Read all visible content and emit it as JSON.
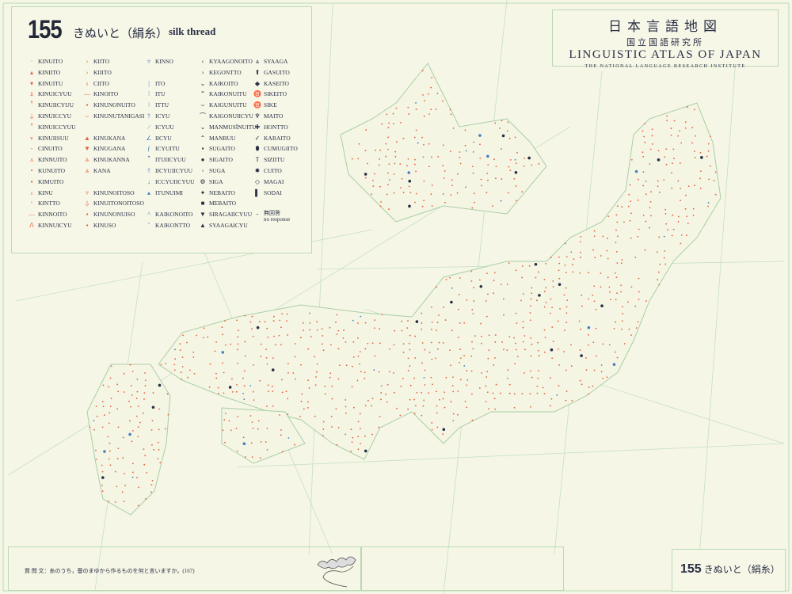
{
  "map": {
    "number": "155",
    "title_ja": "きぬいと（絹糸）",
    "title_en": "silk thread",
    "question": "質 問 文：糸のうち，蚕のまゆから作るものを何と言いますか。(167)",
    "colors": {
      "background": "#f6f6e6",
      "grid": "#b9d9b5",
      "kinuito": "#e8603c",
      "kana": "#d6303a",
      "ito": "#4a7fc0",
      "kaiko": "#2a2f45"
    }
  },
  "atlas": {
    "title_ja": "日本言語地図",
    "institute_ja": "国立国語研究所",
    "title_en": "LINGUISTIC ATLAS OF JAPAN",
    "institute_en": "THE NATIONAL LANGUAGE RESEARCH INSTITUTE"
  },
  "legend": {
    "columns": [
      {
        "color": "#e8603c",
        "items": [
          {
            "s": "·",
            "t": "KINUITO"
          },
          {
            "s": "▴",
            "t": "KINIITO"
          },
          {
            "s": "▾",
            "t": "KINUITU"
          },
          {
            "s": "⍋",
            "t": "KINUICYUU"
          },
          {
            "s": "ꜛ",
            "t": "KINUIICYUU"
          },
          {
            "s": "⍊",
            "t": "KINUICCYU"
          },
          {
            "s": "ꜛ",
            "t": "KINUICCYUU"
          },
          {
            "s": "ʏ",
            "t": "KINUIISUU"
          },
          {
            "s": "-",
            "t": "CINUITO"
          },
          {
            "s": "ʌ",
            "t": "KINNUITO"
          },
          {
            "s": "•",
            "t": "KUNUITO"
          },
          {
            "s": "▪",
            "t": "KIMUITO"
          },
          {
            "s": "ı",
            "t": "KINU"
          },
          {
            "s": "ᵛ",
            "t": "KINTTO"
          },
          {
            "s": "—",
            "t": "KINNOITO"
          },
          {
            "s": "ᐱ",
            "t": "KINNUICYU"
          }
        ]
      },
      {
        "color": "#e8603c",
        "items": [
          {
            "s": "›",
            "t": "KIITO"
          },
          {
            "s": "›",
            "t": "KIIITO"
          },
          {
            "s": "ı",
            "t": "CIITO"
          },
          {
            "s": "—",
            "t": "KINOITO"
          },
          {
            "s": "▪",
            "t": "KINUNONUITO"
          },
          {
            "s": "⌣",
            "t": "KINUNUTANIGASI"
          },
          {
            "s": "",
            "t": ""
          },
          {
            "s": "▲",
            "t": "KINUKANA"
          },
          {
            "s": "▼",
            "t": "KINUGANA"
          },
          {
            "s": "⩓",
            "t": "KINUKANNA"
          },
          {
            "s": "⩓",
            "t": "KANA"
          },
          {
            "s": "",
            "t": ""
          },
          {
            "s": "▿",
            "t": "KINUNOITOSO"
          },
          {
            "s": "⍙",
            "t": "KINUITONOITOSO"
          },
          {
            "s": "▪",
            "t": "KINUNONUISO"
          },
          {
            "s": "▪",
            "t": "KINUSO"
          }
        ]
      },
      {
        "color": "#4a7fc0",
        "items": [
          {
            "s": "▿",
            "t": "KINSO"
          },
          {
            "s": "",
            "t": ""
          },
          {
            "s": "|",
            "t": "ITO"
          },
          {
            "s": "ǀ",
            "t": "ITU"
          },
          {
            "s": "ǀ",
            "t": "ITTU"
          },
          {
            "s": "†",
            "t": "ICYU"
          },
          {
            "s": "∕",
            "t": "ICYUU"
          },
          {
            "s": "∠",
            "t": "IICYU"
          },
          {
            "s": "ƒ",
            "t": "ICYUITU"
          },
          {
            "s": "ꜛ",
            "t": "ITUIICYUU"
          },
          {
            "s": "†",
            "t": "IICYUIICYUU"
          },
          {
            "s": "↓",
            "t": "ICCYUIICYUU"
          },
          {
            "s": "▴",
            "t": "ITUNUIMI"
          },
          {
            "s": "",
            "t": ""
          },
          {
            "s": "^",
            "t": "KAIKONOITO"
          },
          {
            "s": "ˇ",
            "t": "KAIKONTTO"
          }
        ]
      },
      {
        "color": "#2a2f45",
        "items": [
          {
            "s": "‹",
            "t": "KYAAGONOITO"
          },
          {
            "s": "›",
            "t": "KEGONTTO"
          },
          {
            "s": "⌄",
            "t": "KAIKOITO"
          },
          {
            "s": "⌃",
            "t": "KAIKONUITU"
          },
          {
            "s": "⌣",
            "t": "KAIGUNUITU"
          },
          {
            "s": "⌒",
            "t": "KAIGONUIICYU"
          },
          {
            "s": "⌄",
            "t": "MANMUSĬNUITU"
          },
          {
            "s": "⌃",
            "t": "MANBUU"
          },
          {
            "s": "▪",
            "t": "SUGAITO"
          },
          {
            "s": "●",
            "t": "SIGAITO"
          },
          {
            "s": "◦",
            "t": "SUGA"
          },
          {
            "s": "⚙",
            "t": "SIGA"
          },
          {
            "s": "✦",
            "t": "NEBAITO"
          },
          {
            "s": "■",
            "t": "MEBAITO"
          },
          {
            "s": "▼",
            "t": "SIRAGAIICYUU"
          },
          {
            "s": "▲",
            "t": "SYAAGAICYU"
          }
        ]
      },
      {
        "color": "#2a2f45",
        "items": [
          {
            "s": "⩓",
            "t": "SYAAGA"
          },
          {
            "s": "⬆",
            "t": "GASUITO"
          },
          {
            "s": "◆",
            "t": "KASEITO"
          },
          {
            "s": "♉",
            "t": "SIKEITO"
          },
          {
            "s": "♉",
            "t": "SIKE"
          },
          {
            "s": "♆",
            "t": "MAITO"
          },
          {
            "s": "✚",
            "t": "HONTTO"
          },
          {
            "s": "✓",
            "t": "KARAITO"
          },
          {
            "s": "⬮",
            "t": "CUMUGIITO"
          },
          {
            "s": "Ⲧ",
            "t": "SIZIITU"
          },
          {
            "s": "✹",
            "t": "CUITO"
          },
          {
            "s": "◇",
            "t": "MAGAI"
          },
          {
            "s": "▌",
            "t": "SODAI"
          },
          {
            "s": "",
            "t": ""
          }
        ]
      }
    ],
    "no_response": {
      "symbol": "-",
      "ja": "無回答",
      "en": "no response"
    }
  }
}
